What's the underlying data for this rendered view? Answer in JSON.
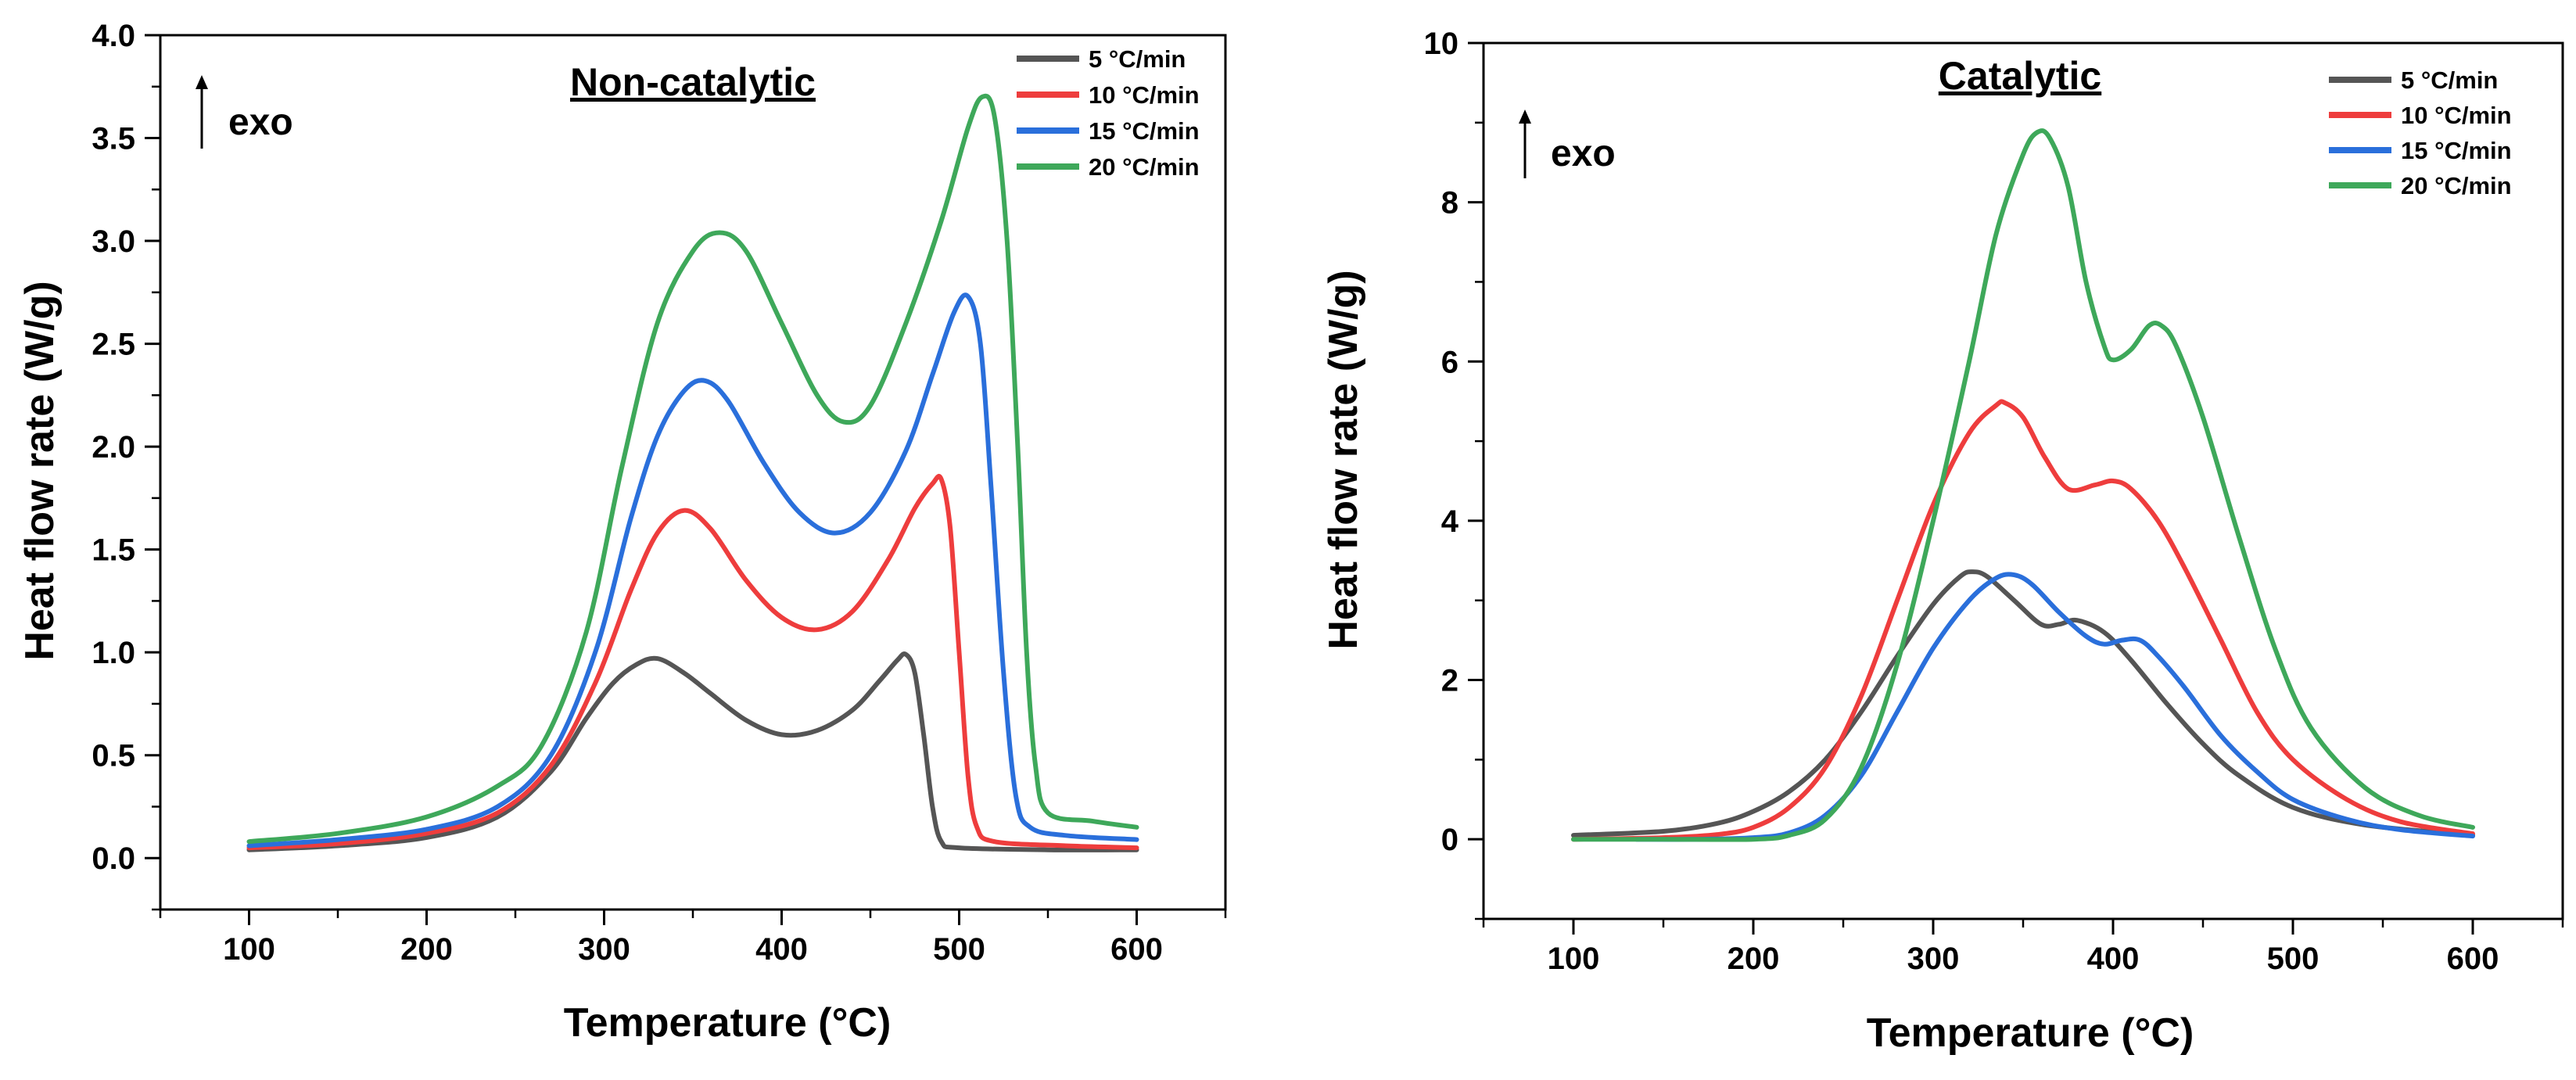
{
  "chart_data": [
    {
      "type": "line",
      "title": "Non-catalytic",
      "xlabel": "Temperature (°C)",
      "ylabel": "Heat flow rate (W/g)",
      "annotation": "exo",
      "xlim": [
        50,
        650
      ],
      "ylim": [
        -0.25,
        4.0
      ],
      "xticks": [
        100,
        200,
        300,
        400,
        500,
        600
      ],
      "xtick_labels": [
        "100",
        "200",
        "300",
        "400",
        "500",
        "600"
      ],
      "yticks": [
        0,
        0.5,
        1.0,
        1.5,
        2.0,
        2.5,
        3.0,
        3.5,
        4.0
      ],
      "ytick_labels": [
        "0.0",
        "0.5",
        "1.0",
        "1.5",
        "2.0",
        "2.5",
        "3.0",
        "3.5",
        "4.0"
      ],
      "legend_position": "top-right",
      "series": [
        {
          "name": "5  °C/min",
          "color": "#555555",
          "points": [
            [
              100,
              0.04
            ],
            [
              150,
              0.06
            ],
            [
              200,
              0.1
            ],
            [
              240,
              0.2
            ],
            [
              270,
              0.42
            ],
            [
              290,
              0.68
            ],
            [
              305,
              0.85
            ],
            [
              318,
              0.94
            ],
            [
              330,
              0.97
            ],
            [
              345,
              0.9
            ],
            [
              360,
              0.8
            ],
            [
              380,
              0.67
            ],
            [
              400,
              0.6
            ],
            [
              420,
              0.62
            ],
            [
              440,
              0.72
            ],
            [
              455,
              0.86
            ],
            [
              465,
              0.96
            ],
            [
              470,
              0.99
            ],
            [
              475,
              0.9
            ],
            [
              480,
              0.6
            ],
            [
              485,
              0.25
            ],
            [
              490,
              0.08
            ],
            [
              500,
              0.05
            ],
            [
              550,
              0.04
            ],
            [
              600,
              0.04
            ]
          ]
        },
        {
          "name": "10 °C/min",
          "color": "#ee3d3d",
          "points": [
            [
              100,
              0.05
            ],
            [
              150,
              0.07
            ],
            [
              200,
              0.12
            ],
            [
              240,
              0.22
            ],
            [
              270,
              0.45
            ],
            [
              295,
              0.85
            ],
            [
              315,
              1.3
            ],
            [
              330,
              1.58
            ],
            [
              345,
              1.69
            ],
            [
              360,
              1.6
            ],
            [
              380,
              1.35
            ],
            [
              400,
              1.17
            ],
            [
              420,
              1.11
            ],
            [
              440,
              1.2
            ],
            [
              460,
              1.45
            ],
            [
              475,
              1.7
            ],
            [
              485,
              1.82
            ],
            [
              490,
              1.84
            ],
            [
              495,
              1.6
            ],
            [
              500,
              1.0
            ],
            [
              505,
              0.4
            ],
            [
              510,
              0.15
            ],
            [
              520,
              0.08
            ],
            [
              560,
              0.06
            ],
            [
              600,
              0.05
            ]
          ]
        },
        {
          "name": "15 °C/min",
          "color": "#2a6fdb",
          "points": [
            [
              100,
              0.06
            ],
            [
              150,
              0.09
            ],
            [
              200,
              0.14
            ],
            [
              240,
              0.25
            ],
            [
              270,
              0.5
            ],
            [
              295,
              1.0
            ],
            [
              315,
              1.65
            ],
            [
              330,
              2.05
            ],
            [
              345,
              2.27
            ],
            [
              357,
              2.32
            ],
            [
              370,
              2.22
            ],
            [
              390,
              1.92
            ],
            [
              410,
              1.68
            ],
            [
              430,
              1.58
            ],
            [
              450,
              1.68
            ],
            [
              470,
              1.98
            ],
            [
              485,
              2.35
            ],
            [
              497,
              2.65
            ],
            [
              505,
              2.73
            ],
            [
              512,
              2.5
            ],
            [
              518,
              1.8
            ],
            [
              525,
              0.9
            ],
            [
              532,
              0.3
            ],
            [
              540,
              0.15
            ],
            [
              560,
              0.11
            ],
            [
              600,
              0.09
            ]
          ]
        },
        {
          "name": "20 °C/min",
          "color": "#3ea85a",
          "points": [
            [
              100,
              0.08
            ],
            [
              150,
              0.12
            ],
            [
              200,
              0.2
            ],
            [
              240,
              0.35
            ],
            [
              265,
              0.55
            ],
            [
              290,
              1.1
            ],
            [
              310,
              1.9
            ],
            [
              330,
              2.6
            ],
            [
              350,
              2.95
            ],
            [
              365,
              3.04
            ],
            [
              380,
              2.95
            ],
            [
              400,
              2.6
            ],
            [
              420,
              2.25
            ],
            [
              435,
              2.12
            ],
            [
              450,
              2.2
            ],
            [
              470,
              2.6
            ],
            [
              490,
              3.1
            ],
            [
              505,
              3.55
            ],
            [
              513,
              3.7
            ],
            [
              520,
              3.6
            ],
            [
              527,
              3.0
            ],
            [
              533,
              2.0
            ],
            [
              538,
              1.0
            ],
            [
              543,
              0.45
            ],
            [
              550,
              0.22
            ],
            [
              575,
              0.18
            ],
            [
              600,
              0.15
            ]
          ]
        }
      ]
    },
    {
      "type": "line",
      "title": "Catalytic",
      "xlabel": "Temperature (°C)",
      "ylabel": "Heat flow rate (W/g)",
      "annotation": "exo",
      "xlim": [
        50,
        650
      ],
      "ylim": [
        -1,
        10
      ],
      "xticks": [
        100,
        200,
        300,
        400,
        500,
        600
      ],
      "xtick_labels": [
        "100",
        "200",
        "300",
        "400",
        "500",
        "600"
      ],
      "yticks": [
        0,
        2,
        4,
        6,
        8,
        10
      ],
      "ytick_labels": [
        "0",
        "2",
        "4",
        "6",
        "8",
        "10"
      ],
      "legend_position": "top-right",
      "series": [
        {
          "name": "5  °C/min",
          "color": "#555555",
          "points": [
            [
              100,
              0.05
            ],
            [
              150,
              0.1
            ],
            [
              180,
              0.2
            ],
            [
              200,
              0.35
            ],
            [
              220,
              0.6
            ],
            [
              240,
              1.0
            ],
            [
              260,
              1.6
            ],
            [
              280,
              2.3
            ],
            [
              300,
              2.95
            ],
            [
              315,
              3.3
            ],
            [
              322,
              3.36
            ],
            [
              330,
              3.3
            ],
            [
              345,
              3.0
            ],
            [
              360,
              2.7
            ],
            [
              370,
              2.7
            ],
            [
              380,
              2.75
            ],
            [
              395,
              2.6
            ],
            [
              410,
              2.25
            ],
            [
              430,
              1.7
            ],
            [
              450,
              1.2
            ],
            [
              470,
              0.8
            ],
            [
              500,
              0.4
            ],
            [
              540,
              0.18
            ],
            [
              600,
              0.05
            ]
          ]
        },
        {
          "name": "10 °C/min",
          "color": "#ee3d3d",
          "points": [
            [
              100,
              0.0
            ],
            [
              150,
              0.02
            ],
            [
              180,
              0.06
            ],
            [
              200,
              0.15
            ],
            [
              220,
              0.4
            ],
            [
              240,
              0.9
            ],
            [
              260,
              1.8
            ],
            [
              280,
              3.0
            ],
            [
              300,
              4.2
            ],
            [
              320,
              5.1
            ],
            [
              335,
              5.45
            ],
            [
              340,
              5.48
            ],
            [
              350,
              5.3
            ],
            [
              362,
              4.8
            ],
            [
              375,
              4.4
            ],
            [
              390,
              4.45
            ],
            [
              400,
              4.5
            ],
            [
              410,
              4.4
            ],
            [
              425,
              4.0
            ],
            [
              440,
              3.4
            ],
            [
              460,
              2.5
            ],
            [
              480,
              1.6
            ],
            [
              500,
              1.0
            ],
            [
              530,
              0.5
            ],
            [
              560,
              0.22
            ],
            [
              600,
              0.07
            ]
          ]
        },
        {
          "name": "15 °C/min",
          "color": "#2a6fdb",
          "points": [
            [
              135,
              0.0
            ],
            [
              170,
              0.0
            ],
            [
              200,
              0.02
            ],
            [
              220,
              0.08
            ],
            [
              240,
              0.3
            ],
            [
              260,
              0.8
            ],
            [
              280,
              1.6
            ],
            [
              300,
              2.4
            ],
            [
              320,
              3.0
            ],
            [
              335,
              3.28
            ],
            [
              345,
              3.32
            ],
            [
              355,
              3.2
            ],
            [
              370,
              2.85
            ],
            [
              385,
              2.55
            ],
            [
              395,
              2.45
            ],
            [
              405,
              2.5
            ],
            [
              415,
              2.5
            ],
            [
              425,
              2.3
            ],
            [
              440,
              1.9
            ],
            [
              460,
              1.3
            ],
            [
              480,
              0.85
            ],
            [
              500,
              0.5
            ],
            [
              530,
              0.25
            ],
            [
              560,
              0.12
            ],
            [
              600,
              0.04
            ]
          ]
        },
        {
          "name": "20 °C/min",
          "color": "#3ea85a",
          "points": [
            [
              100,
              0.0
            ],
            [
              150,
              0.0
            ],
            [
              200,
              0.0
            ],
            [
              220,
              0.05
            ],
            [
              240,
              0.25
            ],
            [
              260,
              0.9
            ],
            [
              280,
              2.2
            ],
            [
              300,
              4.0
            ],
            [
              320,
              6.0
            ],
            [
              335,
              7.6
            ],
            [
              350,
              8.6
            ],
            [
              358,
              8.88
            ],
            [
              365,
              8.8
            ],
            [
              375,
              8.2
            ],
            [
              385,
              7.0
            ],
            [
              395,
              6.2
            ],
            [
              400,
              6.02
            ],
            [
              410,
              6.15
            ],
            [
              420,
              6.45
            ],
            [
              427,
              6.45
            ],
            [
              435,
              6.2
            ],
            [
              450,
              5.3
            ],
            [
              470,
              3.8
            ],
            [
              490,
              2.4
            ],
            [
              510,
              1.4
            ],
            [
              540,
              0.65
            ],
            [
              570,
              0.3
            ],
            [
              600,
              0.15
            ]
          ]
        }
      ]
    }
  ]
}
